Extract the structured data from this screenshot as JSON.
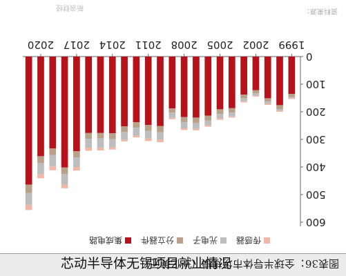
{
  "title": "图表36：全球半导体市场规模（十亿美元）",
  "caption": "芯动半导体无锡项目就业情况",
  "source": "资料来源：",
  "watermark": "新浪财经",
  "chart_data": {
    "type": "bar",
    "stacked": true,
    "title": "图表36：全球半导体市场规模（十亿美元）",
    "ylim": [
      0,
      600
    ],
    "yticks": [
      0,
      100,
      200,
      300,
      400,
      500,
      600
    ],
    "grid": false,
    "legend_position": "top",
    "categories": [
      "1999",
      "2000",
      "2001",
      "2002",
      "2003",
      "2004",
      "2005",
      "2006",
      "2007",
      "2008",
      "2009",
      "2010",
      "2011",
      "2012",
      "2013",
      "2014",
      "2015",
      "2016",
      "2017",
      "2018",
      "2019",
      "2020",
      "2021"
    ],
    "x_tick_labels": [
      "1999",
      "2002",
      "2005",
      "2008",
      "2011",
      "2014",
      "2017",
      "2020"
    ],
    "series": [
      {
        "name": "集成电路",
        "color": "#b5121b",
        "values": [
          135,
          176,
          151,
          122,
          138,
          187,
          191,
          214,
          221,
          219,
          188,
          252,
          248,
          238,
          253,
          278,
          277,
          277,
          343,
          402,
          333,
          361,
          464
        ]
      },
      {
        "name": "分立器件",
        "color": "#b8a089",
        "values": [
          12,
          14,
          12,
          11,
          13,
          16,
          17,
          18,
          19,
          19,
          15,
          22,
          21,
          20,
          20,
          21,
          20,
          21,
          22,
          24,
          24,
          24,
          30
        ]
      },
      {
        "name": "光电子",
        "color": "#bdbdbd",
        "values": [
          5,
          6,
          8,
          9,
          11,
          14,
          16,
          17,
          21,
          22,
          19,
          27,
          28,
          28,
          28,
          30,
          34,
          32,
          35,
          38,
          41,
          41,
          43
        ]
      },
      {
        "name": "传感器",
        "color": "#f0b8a4",
        "values": [
          2,
          4,
          4,
          3,
          4,
          4,
          5,
          5,
          6,
          6,
          5,
          9,
          9,
          7,
          6,
          8,
          9,
          11,
          13,
          13,
          14,
          15,
          19
        ]
      }
    ]
  }
}
